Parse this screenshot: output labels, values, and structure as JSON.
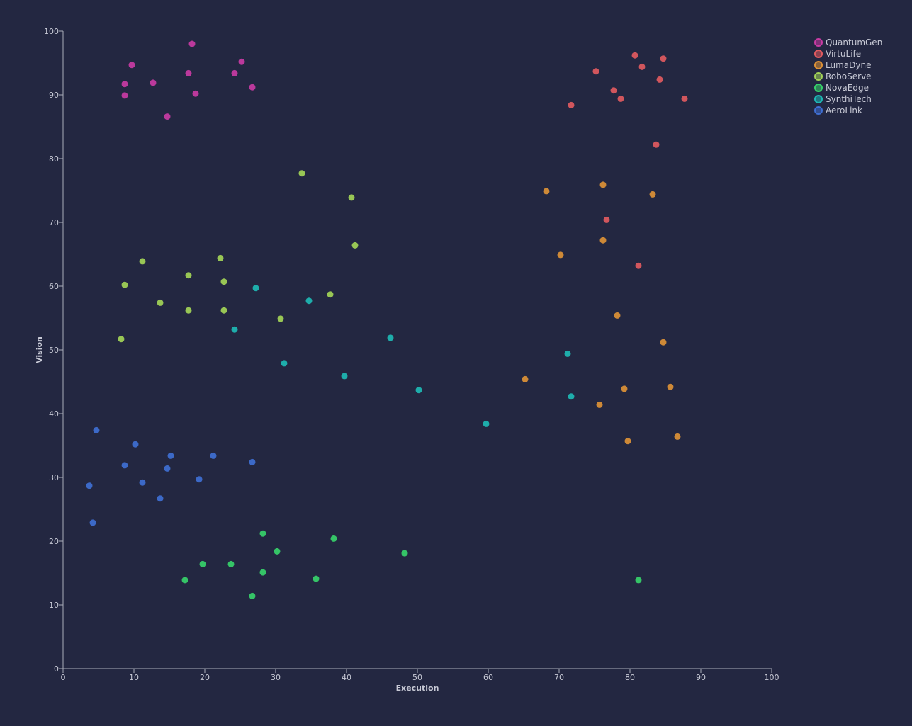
{
  "chart_data": {
    "type": "scatter",
    "title": "",
    "xlabel": "Execution",
    "ylabel": "Vision",
    "xlim": [
      0,
      100
    ],
    "ylim": [
      0,
      100
    ],
    "xticks": [
      0,
      10,
      20,
      30,
      40,
      50,
      60,
      70,
      80,
      90,
      100
    ],
    "yticks": [
      0,
      10,
      20,
      30,
      40,
      50,
      60,
      70,
      80,
      90,
      100
    ],
    "grid": false,
    "legend_position": "top-right",
    "series": [
      {
        "name": "QuantumGen",
        "color": "#c93ba4",
        "points": [
          {
            "x": 8.7,
            "y": 91.7
          },
          {
            "x": 8.7,
            "y": 89.9
          },
          {
            "x": 9.7,
            "y": 94.7
          },
          {
            "x": 12.7,
            "y": 91.9
          },
          {
            "x": 14.7,
            "y": 86.6
          },
          {
            "x": 17.7,
            "y": 93.4
          },
          {
            "x": 18.7,
            "y": 90.2
          },
          {
            "x": 18.2,
            "y": 98.0
          },
          {
            "x": 24.2,
            "y": 93.4
          },
          {
            "x": 25.2,
            "y": 95.2
          },
          {
            "x": 26.7,
            "y": 91.2
          }
        ]
      },
      {
        "name": "VirtuLife",
        "color": "#e15a5f",
        "points": [
          {
            "x": 71.7,
            "y": 88.4
          },
          {
            "x": 75.2,
            "y": 93.7
          },
          {
            "x": 77.7,
            "y": 90.7
          },
          {
            "x": 78.7,
            "y": 89.4
          },
          {
            "x": 80.7,
            "y": 96.2
          },
          {
            "x": 81.7,
            "y": 94.4
          },
          {
            "x": 84.2,
            "y": 92.4
          },
          {
            "x": 84.7,
            "y": 95.7
          },
          {
            "x": 87.7,
            "y": 89.4
          },
          {
            "x": 83.7,
            "y": 82.2
          },
          {
            "x": 76.7,
            "y": 70.4
          },
          {
            "x": 81.2,
            "y": 63.2
          }
        ]
      },
      {
        "name": "LumaDyne",
        "color": "#dd9136",
        "points": [
          {
            "x": 68.2,
            "y": 74.9
          },
          {
            "x": 76.2,
            "y": 75.9
          },
          {
            "x": 83.2,
            "y": 74.4
          },
          {
            "x": 76.2,
            "y": 67.2
          },
          {
            "x": 70.2,
            "y": 64.9
          },
          {
            "x": 78.2,
            "y": 55.4
          },
          {
            "x": 84.7,
            "y": 51.2
          },
          {
            "x": 65.2,
            "y": 45.4
          },
          {
            "x": 79.2,
            "y": 43.9
          },
          {
            "x": 85.7,
            "y": 44.2
          },
          {
            "x": 75.7,
            "y": 41.4
          },
          {
            "x": 79.7,
            "y": 35.7
          },
          {
            "x": 86.7,
            "y": 36.4
          }
        ]
      },
      {
        "name": "RoboServe",
        "color": "#a3d457",
        "points": [
          {
            "x": 33.7,
            "y": 77.7
          },
          {
            "x": 40.7,
            "y": 73.9
          },
          {
            "x": 41.2,
            "y": 66.4
          },
          {
            "x": 11.2,
            "y": 63.9
          },
          {
            "x": 22.2,
            "y": 64.4
          },
          {
            "x": 17.7,
            "y": 61.7
          },
          {
            "x": 8.7,
            "y": 60.2
          },
          {
            "x": 22.7,
            "y": 60.7
          },
          {
            "x": 13.7,
            "y": 57.4
          },
          {
            "x": 17.7,
            "y": 56.2
          },
          {
            "x": 22.7,
            "y": 56.2
          },
          {
            "x": 30.7,
            "y": 54.9
          },
          {
            "x": 37.7,
            "y": 58.7
          },
          {
            "x": 8.2,
            "y": 51.7
          }
        ]
      },
      {
        "name": "NovaEdge",
        "color": "#37d16a",
        "points": [
          {
            "x": 28.2,
            "y": 21.2
          },
          {
            "x": 38.2,
            "y": 20.4
          },
          {
            "x": 30.2,
            "y": 18.4
          },
          {
            "x": 48.2,
            "y": 18.1
          },
          {
            "x": 19.7,
            "y": 16.4
          },
          {
            "x": 23.7,
            "y": 16.4
          },
          {
            "x": 28.2,
            "y": 15.1
          },
          {
            "x": 17.2,
            "y": 13.9
          },
          {
            "x": 35.7,
            "y": 14.1
          },
          {
            "x": 26.7,
            "y": 11.4
          },
          {
            "x": 81.2,
            "y": 13.9
          }
        ]
      },
      {
        "name": "SynthiTech",
        "color": "#1eb8b4",
        "points": [
          {
            "x": 27.2,
            "y": 59.7
          },
          {
            "x": 34.7,
            "y": 57.7
          },
          {
            "x": 24.2,
            "y": 53.2
          },
          {
            "x": 46.2,
            "y": 51.9
          },
          {
            "x": 31.2,
            "y": 47.9
          },
          {
            "x": 39.7,
            "y": 45.9
          },
          {
            "x": 50.2,
            "y": 43.7
          },
          {
            "x": 59.7,
            "y": 38.4
          },
          {
            "x": 71.2,
            "y": 49.4
          },
          {
            "x": 71.7,
            "y": 42.7
          }
        ]
      },
      {
        "name": "AeroLink",
        "color": "#3f6fd3",
        "points": [
          {
            "x": 4.7,
            "y": 37.4
          },
          {
            "x": 10.2,
            "y": 35.2
          },
          {
            "x": 15.2,
            "y": 33.4
          },
          {
            "x": 21.2,
            "y": 33.4
          },
          {
            "x": 26.7,
            "y": 32.4
          },
          {
            "x": 8.7,
            "y": 31.9
          },
          {
            "x": 14.7,
            "y": 31.4
          },
          {
            "x": 19.2,
            "y": 29.7
          },
          {
            "x": 3.7,
            "y": 28.7
          },
          {
            "x": 11.2,
            "y": 29.2
          },
          {
            "x": 13.7,
            "y": 26.7
          },
          {
            "x": 4.2,
            "y": 22.9
          }
        ]
      }
    ]
  }
}
